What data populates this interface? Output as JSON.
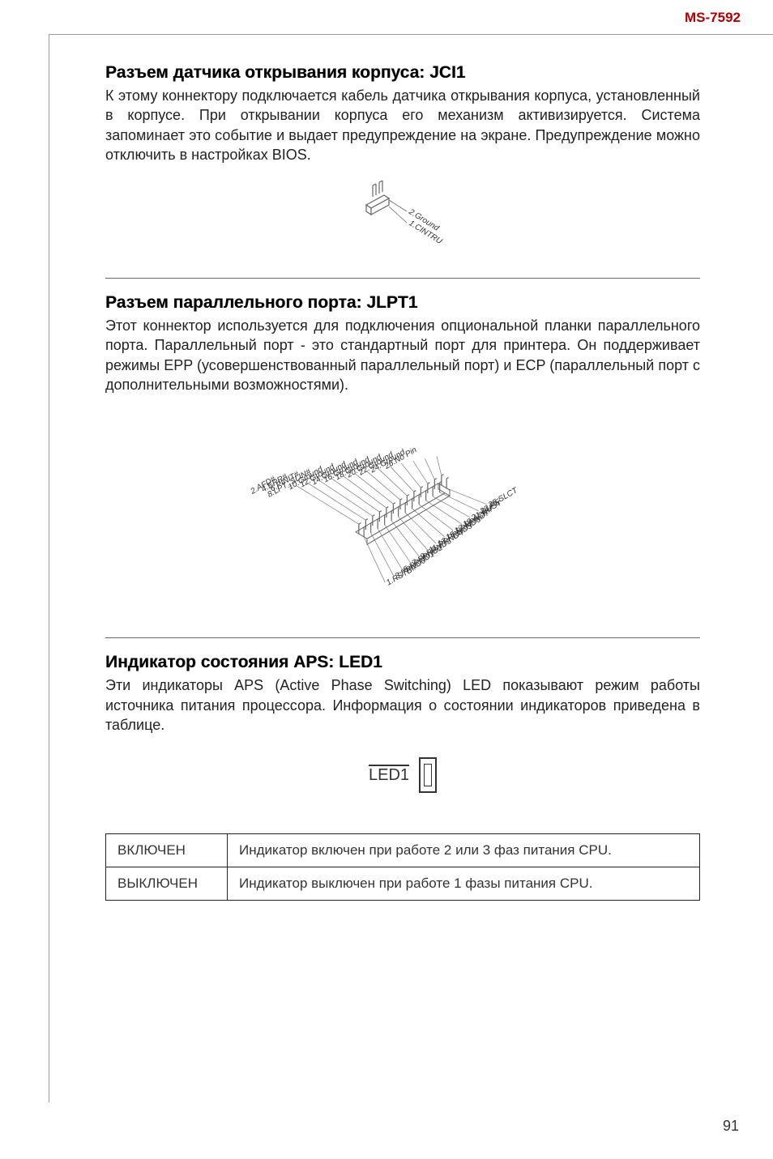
{
  "header": {
    "code": "MS-7592",
    "color": "#b00000"
  },
  "section1": {
    "title": "Разъем датчика открывания корпуса: JCI1",
    "body": "К этому коннектору подключается кабель датчика открывания корпуса, установленный в корпусе. При открывании корпуса его механизм активизируется. Система запоминает это событие и выдает предупреждение на экране. Предупреждение можно отключить в настройках BIOS.",
    "pins": [
      "2.Ground",
      "1.CINTRU"
    ]
  },
  "section2": {
    "title": "Разъем параллельного порта: JLPT1",
    "body": "Этот коннектор используется для подключения опциональной планки параллельного порта. Параллельный порт - это стандартный порт для принтера. Он поддерживает режимы EPP (усовершенствованный параллельный порт) и ECP (параллельный порт с дополнительными возможностями).",
    "pins_left": [
      "26.No Pin",
      "24.Ground",
      "22.Ground",
      "20.Ground",
      "18.Ground",
      "16.Ground",
      "14.Ground",
      "12.Ground",
      "10.Ground",
      "8.LPT_SLIN#",
      "6.PINIT#",
      "4.ERR#",
      "2.AFD#"
    ],
    "pins_right": [
      "25.SLCT",
      "23.PE",
      "21.BUSY",
      "19.ACK#",
      "17.PRND7",
      "15.PRND6",
      "13.PRND5",
      "11.PRND4",
      "9.PRND3",
      "7.PRND2",
      "5.PRND1",
      "3.PRND0",
      "1.RSTB#"
    ]
  },
  "section3": {
    "title": "Индикатор состояния APS: LED1",
    "body": "Эти индикаторы APS (Active Phase Switching) LED показывают режим работы источника питания процессора. Информация о состоянии индикаторов приведена в таблице.",
    "led_label": "LED1"
  },
  "table": {
    "rows": [
      {
        "state": "ВКЛЮЧЕН",
        "desc": "Индикатор включен при работе 2 или 3 фаз питания CPU."
      },
      {
        "state": "ВЫКЛЮЧЕН",
        "desc": "Индикатор выключен при работе 1 фазы питания CPU."
      }
    ]
  },
  "page_number": "91",
  "diagram_style": {
    "stroke": "#666666",
    "fill": "#ffffff",
    "label_color": "#333333",
    "label_fontsize": 10,
    "label_fontstyle": "italic"
  }
}
